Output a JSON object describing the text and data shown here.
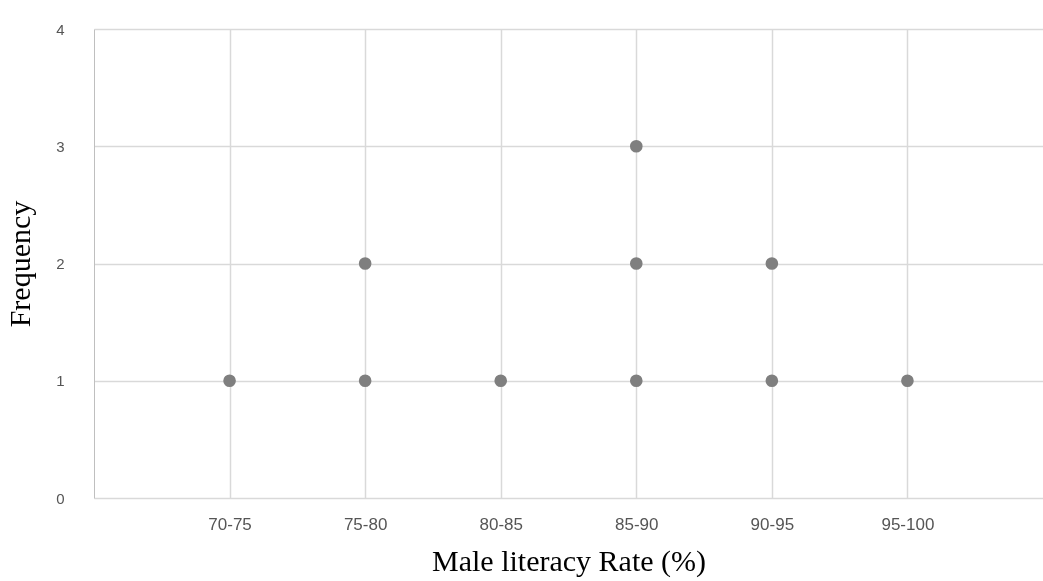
{
  "chart_data": {
    "type": "scatter",
    "xlabel": "Male literacy Rate (%)",
    "ylabel": "Frequency",
    "categories": [
      "70-75",
      "75-80",
      "80-85",
      "85-90",
      "90-95",
      "95-100"
    ],
    "series": [
      {
        "color": "#7f7f7f",
        "x": [
          "70-75",
          "75-80",
          "75-80",
          "80-85",
          "85-90",
          "85-90",
          "85-90",
          "90-95",
          "90-95",
          "95-100"
        ],
        "values": [
          1,
          1,
          2,
          1,
          1,
          2,
          3,
          1,
          2,
          1
        ]
      }
    ],
    "ylim": [
      0,
      4
    ],
    "yticks": [
      0,
      1,
      2,
      3,
      4
    ],
    "grid": true,
    "marker": "circle"
  }
}
